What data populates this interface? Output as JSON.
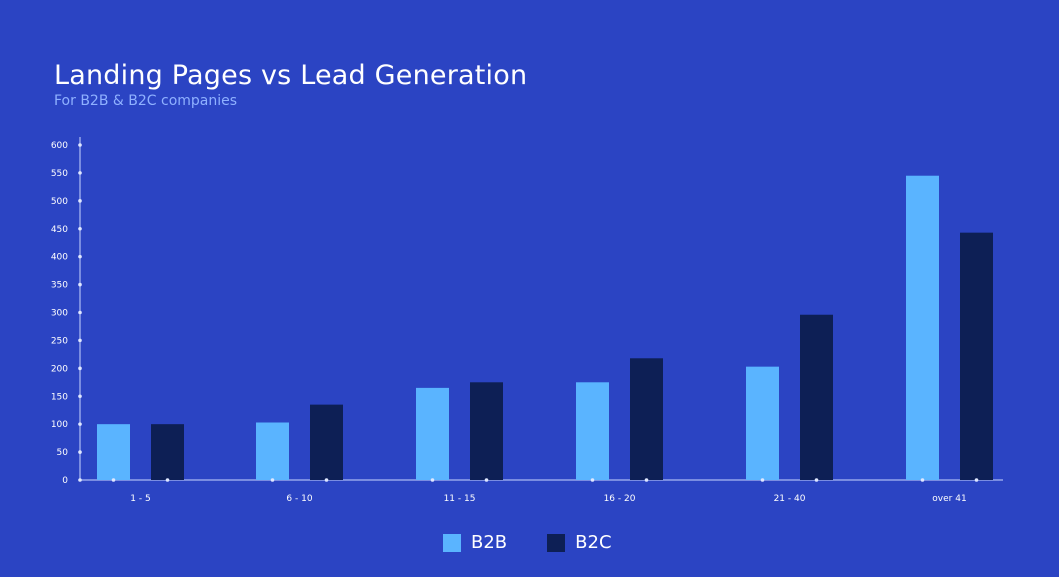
{
  "chart_data": {
    "type": "bar",
    "title": "Landing Pages vs Lead Generation",
    "subtitle": "For B2B & B2C companies",
    "categories": [
      "1 - 5",
      "6 - 10",
      "11 - 15",
      "16 - 20",
      "21 - 40",
      "over 41"
    ],
    "series": [
      {
        "name": "B2B",
        "color": "#5ab4ff",
        "values": [
          100,
          103,
          165,
          175,
          203,
          545
        ]
      },
      {
        "name": "B2C",
        "color": "#0d1f55",
        "values": [
          100,
          135,
          175,
          218,
          296,
          443
        ]
      }
    ],
    "ylim": [
      0,
      600
    ],
    "yticks": [
      0,
      50,
      100,
      150,
      200,
      250,
      300,
      350,
      400,
      450,
      500,
      550,
      600
    ],
    "grid": false,
    "legend_position": "bottom-center"
  }
}
